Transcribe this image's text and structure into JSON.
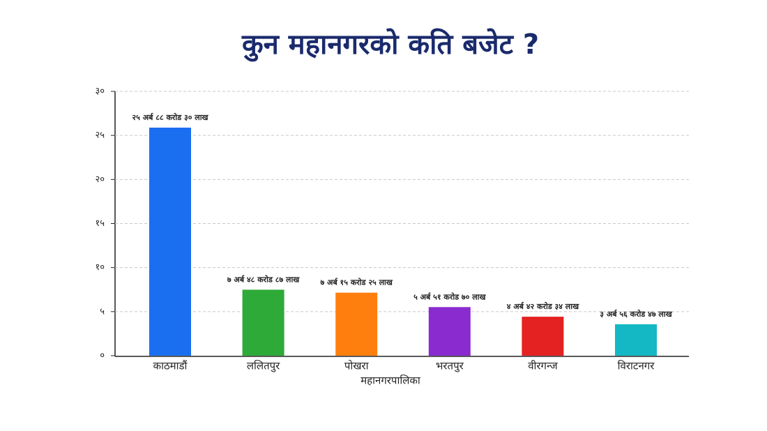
{
  "chart_data": {
    "type": "bar",
    "title": "कुन महानगरको कति बजेट ?",
    "x_label": "महानगरपालिका",
    "categories": [
      "काठमाडौं",
      "ललितपुर",
      "पोखरा",
      "भरतपुर",
      "वीरगन्ज",
      "विराटनगर"
    ],
    "values": [
      25.883,
      7.4887,
      7.1525,
      5.517,
      4.4234,
      3.5647
    ],
    "value_labels": [
      "२५ अर्ब ८८ करोड ३० लाख",
      "७ अर्ब ४८ करोड ८७ लाख",
      "७ अर्ब १५ करोड २५ लाख",
      "५ अर्ब ५१ करोड ७० लाख",
      "४ अर्ब ४२ करोड ३४ लाख",
      "३ अर्ब ५६ करोड ४७ लाख"
    ],
    "colors": [
      "#1a6ff0",
      "#2eaa38",
      "#ff7f0e",
      "#8a2bd0",
      "#e42222",
      "#14b8c4"
    ],
    "ylim": [
      0,
      30
    ],
    "yticks": [
      {
        "value": 0,
        "label": "०"
      },
      {
        "value": 5,
        "label": "५"
      },
      {
        "value": 10,
        "label": "१०"
      },
      {
        "value": 15,
        "label": "१५"
      },
      {
        "value": 20,
        "label": "२०"
      },
      {
        "value": 25,
        "label": "२५"
      },
      {
        "value": 30,
        "label": "३०"
      }
    ],
    "grid": true
  }
}
